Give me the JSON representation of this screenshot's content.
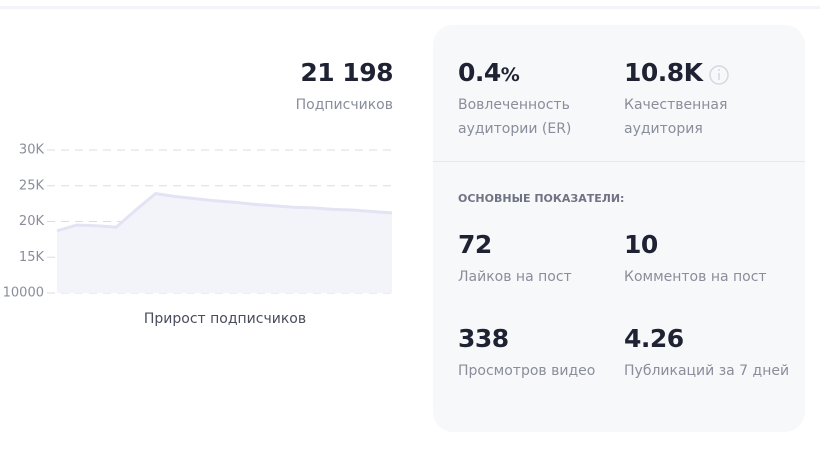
{
  "subscribers": {
    "value": "21 198",
    "label": "Подписчиков"
  },
  "chart": {
    "type": "area",
    "title": "Прирост подписчиков",
    "values": [
      18700,
      19500,
      19400,
      19200,
      21600,
      23900,
      23500,
      23200,
      22900,
      22700,
      22400,
      22200,
      22000,
      21900,
      21700,
      21600,
      21400,
      21200
    ],
    "color": "#e3e4f3",
    "ylim": [
      10000,
      30000
    ],
    "yticks": [
      {
        "value": 10000,
        "label": "10000"
      },
      {
        "value": 15000,
        "label": "15K"
      },
      {
        "value": 20000,
        "label": "20K"
      },
      {
        "value": 25000,
        "label": "25K"
      },
      {
        "value": 30000,
        "label": "30K"
      }
    ],
    "grid": true
  },
  "top_stats": [
    {
      "value": "0.4",
      "unit": "%",
      "label": "Вовлеченность аудитории (ER)"
    },
    {
      "value": "10.8K",
      "label": "Качественная аудитория"
    }
  ],
  "section_title": "ОСНОВНЫЕ ПОКАЗАТЕЛИ:",
  "stats": [
    {
      "value": "72",
      "label": "Лайков на пост"
    },
    {
      "value": "10",
      "label": "Комментов на пост"
    },
    {
      "value": "338",
      "label": "Просмотров видео"
    },
    {
      "value": "4.26",
      "label": "Публикаций за 7 дней"
    }
  ]
}
